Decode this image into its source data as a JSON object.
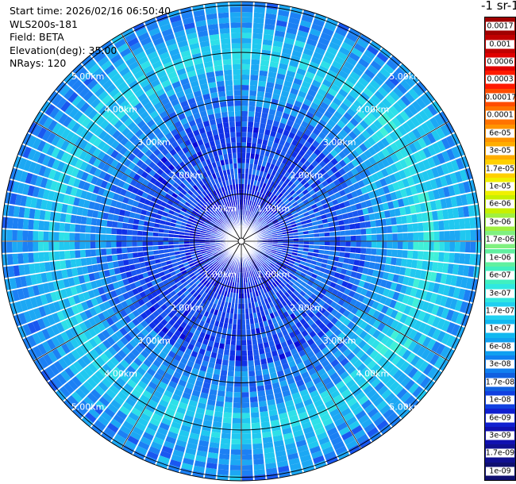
{
  "info": {
    "start_time": "Start time: 2026/02/16 06:50:40",
    "instrument": "WLS200s-181",
    "field": "Field: BETA",
    "elevation": "Elevation(deg): 35.00",
    "nrays": "NRays: 120"
  },
  "colorbar": {
    "title": "-1 sr-1",
    "labels": [
      "0.0017",
      "0.001",
      "0.0006",
      "0.0003",
      "0.00017",
      "0.0001",
      "6e-05",
      "3e-05",
      "1.7e-05",
      "1e-05",
      "6e-06",
      "3e-06",
      "1.7e-06",
      "1e-06",
      "6e-07",
      "3e-07",
      "1.7e-07",
      "1e-07",
      "6e-08",
      "3e-08",
      "1.7e-08",
      "1e-08",
      "6e-09",
      "3e-09",
      "1.7e-09",
      "1e-09"
    ],
    "colors": [
      "#a00000",
      "#c00000",
      "#e00000",
      "#ff1a00",
      "#ff4d00",
      "#ff7300",
      "#ff9400",
      "#ffad00",
      "#ffd000",
      "#f0f000",
      "#c8f000",
      "#a0f040",
      "#80f080",
      "#60f0a0",
      "#40f0c0",
      "#30e8e0",
      "#20d0f0",
      "#10b8f0",
      "#10a0f0",
      "#1080f0",
      "#1060e0",
      "#1040e0",
      "#1020d0",
      "#1010b0",
      "#101090",
      "#101070"
    ]
  },
  "range_rings": {
    "labels": [
      "1.00km",
      "2.00km",
      "3.00km",
      "4.00km",
      "5.00km"
    ]
  }
}
